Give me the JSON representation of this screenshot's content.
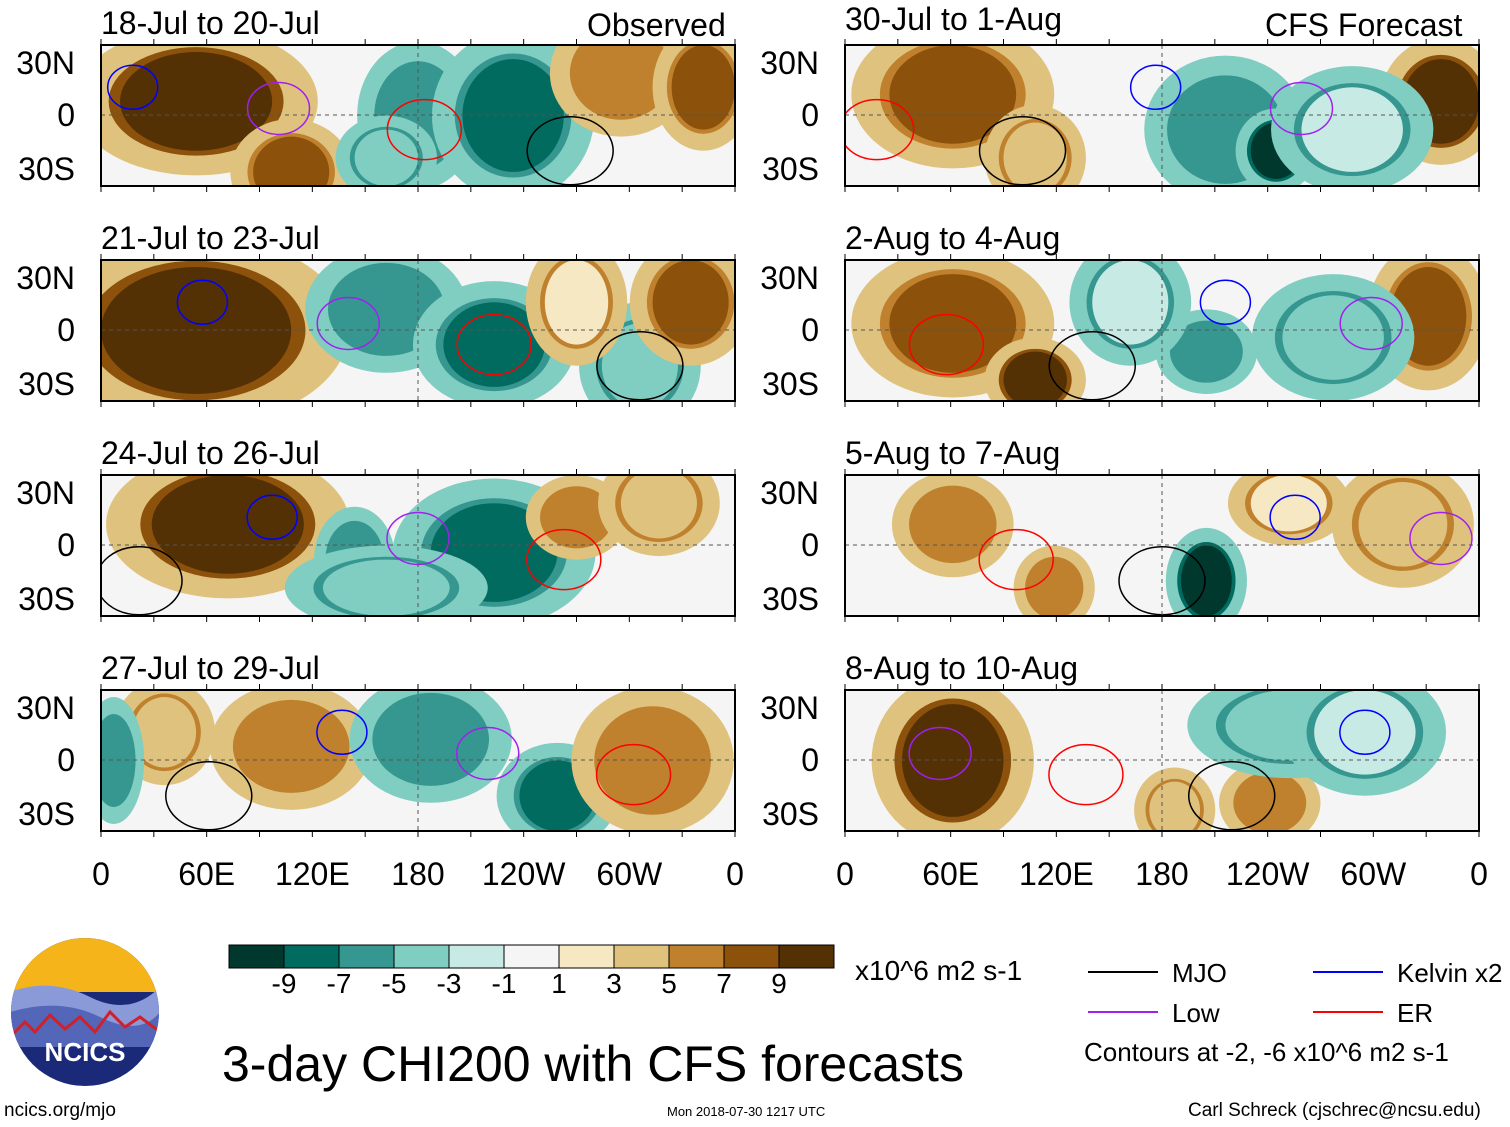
{
  "chart_data": {
    "type": "heatmap",
    "title": "3-day CHI200 with CFS forecasts",
    "units": "x10^6 m2 s-1",
    "colorbar": {
      "ticks": [
        "-9",
        "-7",
        "-5",
        "-3",
        "-1",
        "1",
        "3",
        "5",
        "7",
        "9"
      ],
      "colors": [
        "#01382e",
        "#016b60",
        "#35978f",
        "#80cdc1",
        "#c7eae5",
        "#f5f5f5",
        "#f6e8c3",
        "#dfc27d",
        "#bf812d",
        "#8c510a",
        "#543005"
      ]
    },
    "lat_ticks": [
      "30N",
      "0",
      "30S"
    ],
    "lon_ticks": [
      "0",
      "60E",
      "120E",
      "180",
      "120W",
      "60W",
      "0"
    ],
    "columns": [
      {
        "label": "Observed",
        "panels": [
          "18-Jul to 20-Jul",
          "21-Jul to 23-Jul",
          "24-Jul to 26-Jul",
          "27-Jul to 29-Jul"
        ]
      },
      {
        "label": "CFS Forecast",
        "panels": [
          "30-Jul to 1-Aug",
          "2-Aug to 4-Aug",
          "5-Aug to 7-Aug",
          "8-Aug to 10-Aug"
        ]
      }
    ],
    "legend": [
      {
        "label": "MJO",
        "color": "#000000"
      },
      {
        "label": "Kelvin x2",
        "color": "#0000ff"
      },
      {
        "label": "Low",
        "color": "#a020f0"
      },
      {
        "label": "ER",
        "color": "#ff0000"
      }
    ],
    "contour_note": "Contours at -2, -6 x10^6 m2 s-1"
  },
  "footer": {
    "logo_text": "NCICS",
    "url": "ncics.org/mjo",
    "timestamp": "Mon 2018-07-30 1217 UTC",
    "author": "Carl Schreck (cjschrec@ncsu.edu)"
  }
}
